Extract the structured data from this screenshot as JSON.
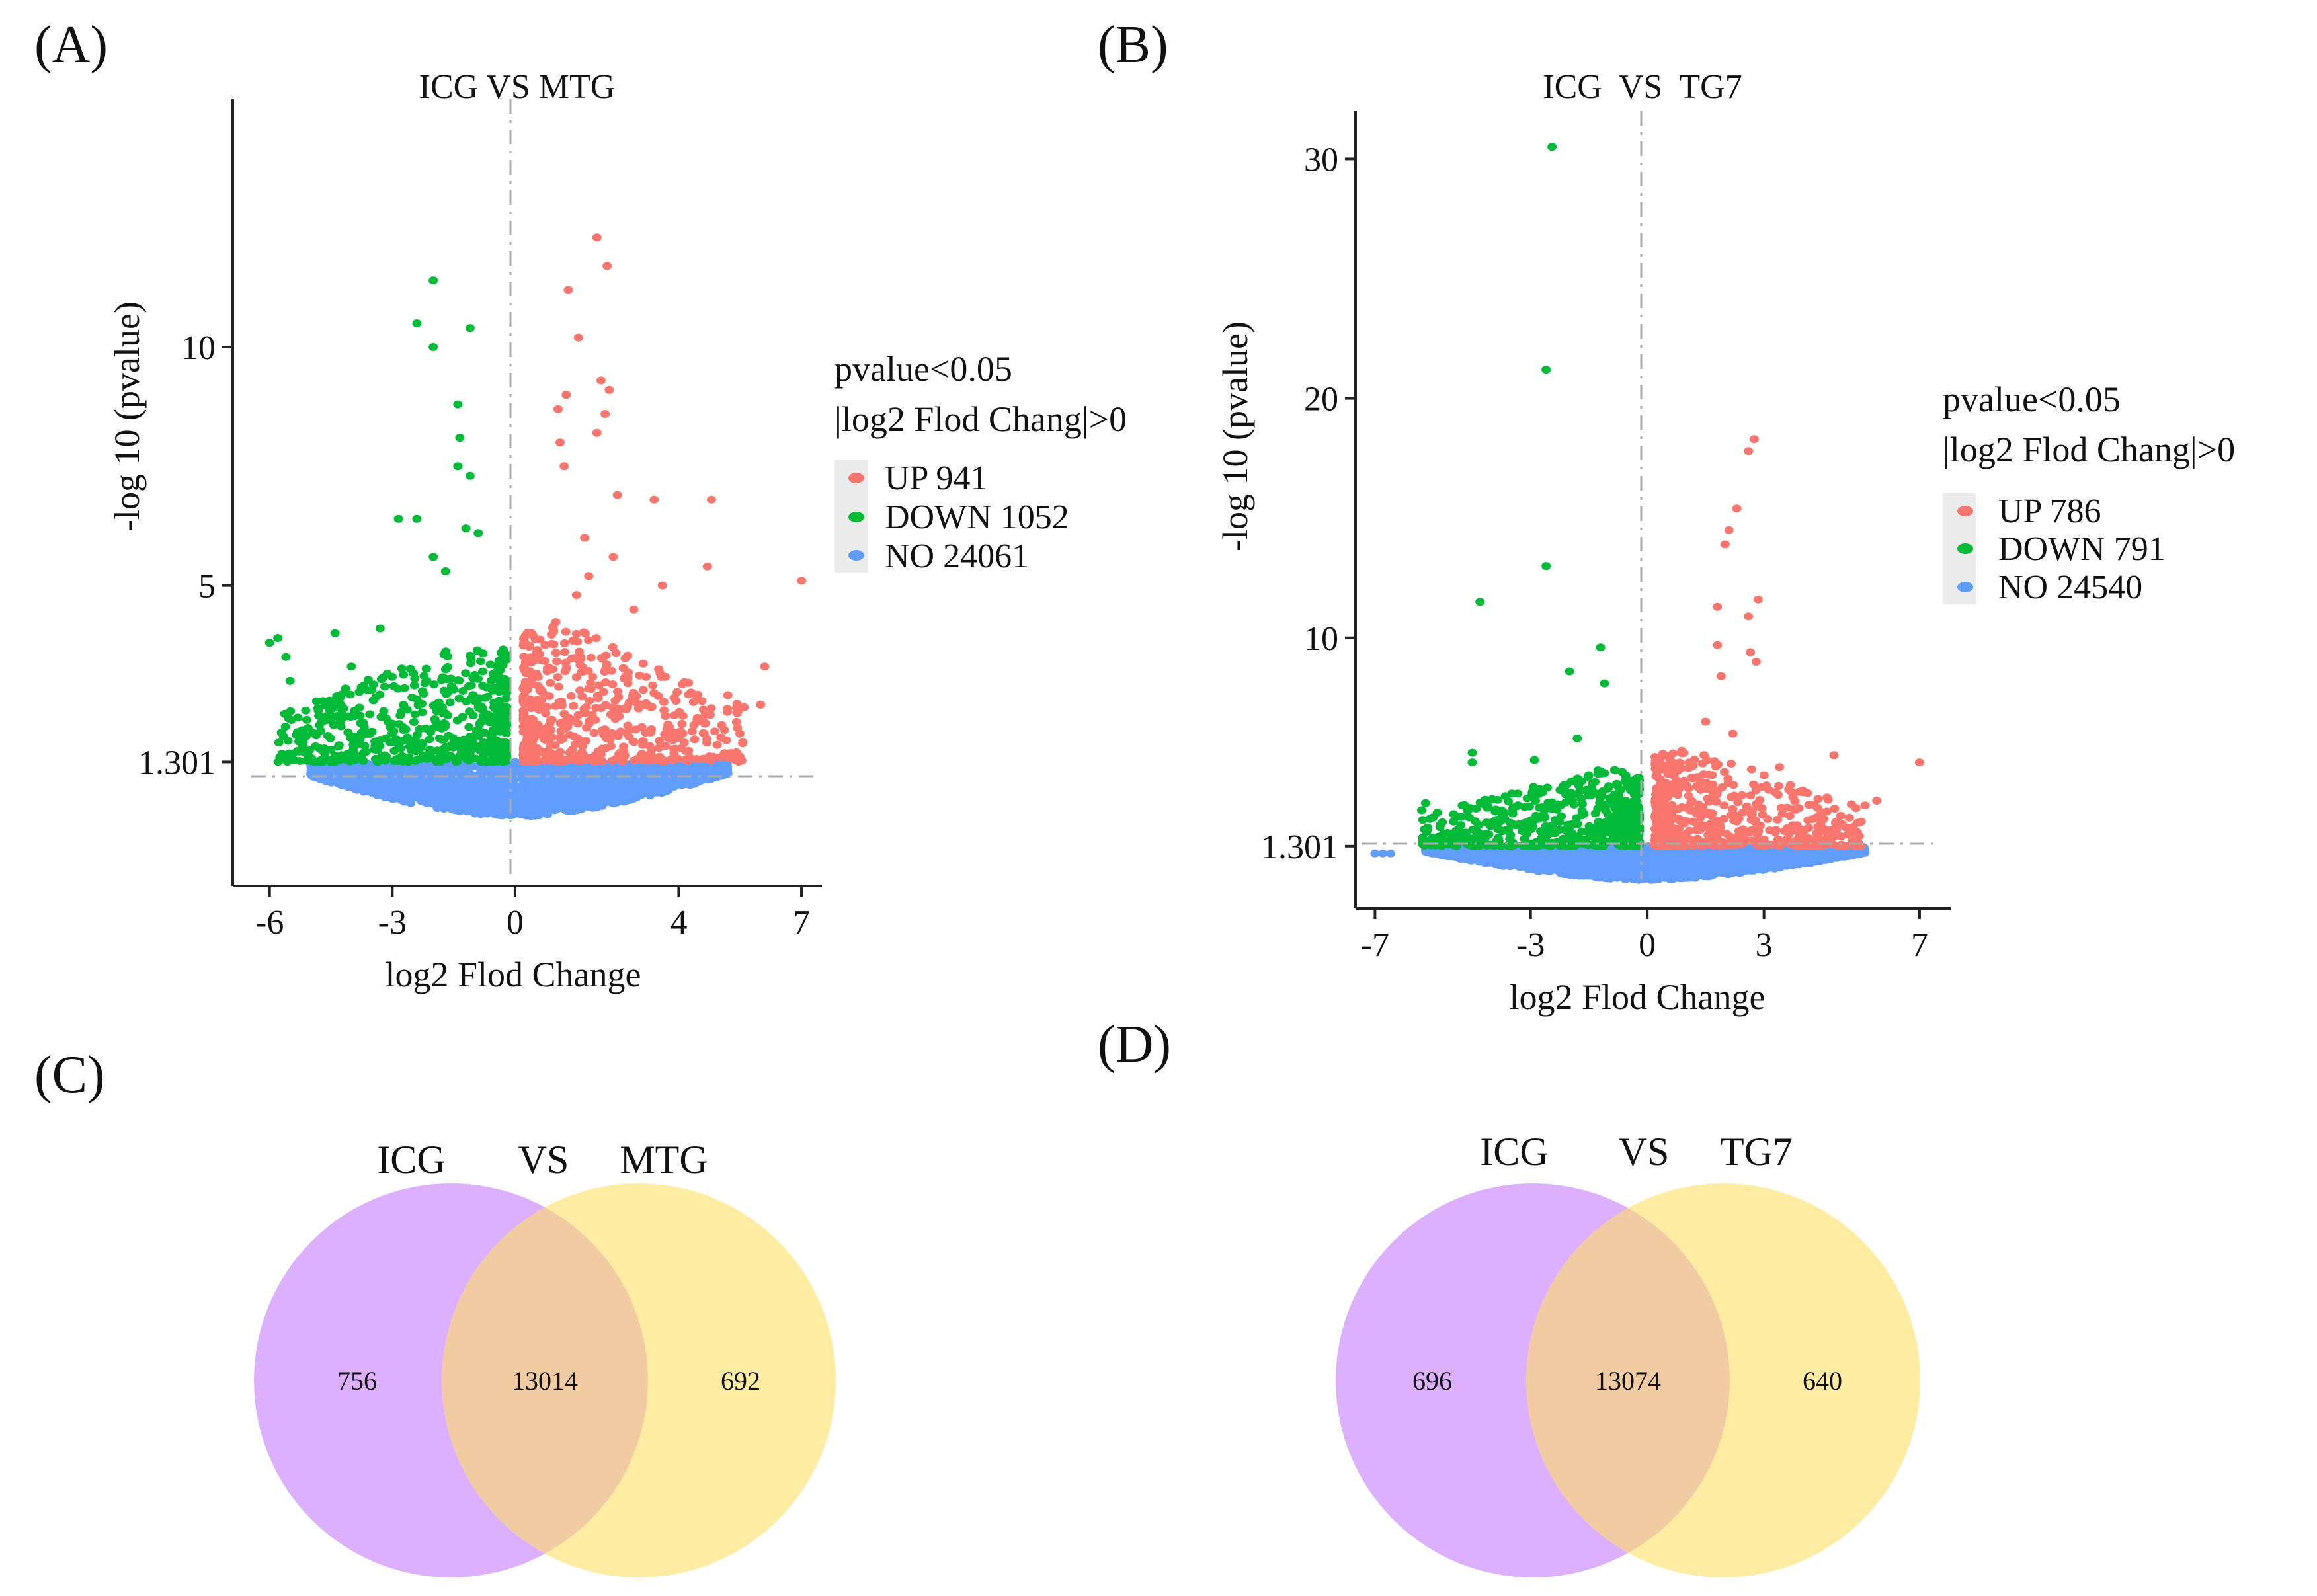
{
  "chart_data": [
    {
      "panel": "(A)",
      "type": "scatter",
      "title": "ICG VS MTG",
      "xlabel": "log2 Flod Change",
      "ylabel": "-log 10 (pvalue)",
      "xlim": [
        -6.9,
        7.5
      ],
      "ylim": [
        -1.3,
        15.2
      ],
      "xticks": [
        "-6",
        "-3",
        "0",
        "4",
        "7"
      ],
      "xtick_values": [
        -6,
        -3,
        0,
        4,
        7
      ],
      "yticks": [
        "1.301",
        "5",
        "10"
      ],
      "ytick_values": [
        1.301,
        5,
        10
      ],
      "threshold_y": 1.301,
      "threshold_x": 0,
      "legend": {
        "title_line1": "pvalue<0.05",
        "title_line2": "|log2 Flod Chang|>0",
        "position": "right"
      },
      "series": [
        {
          "name": "UP",
          "label": "UP 941",
          "count": 941,
          "color": "#f8766d",
          "points": [
            [
              2.0,
              12.3
            ],
            [
              2.25,
              11.7
            ],
            [
              1.3,
              11.2
            ],
            [
              1.55,
              10.2
            ],
            [
              2.1,
              9.3
            ],
            [
              2.3,
              9.1
            ],
            [
              1.25,
              9.0
            ],
            [
              2.2,
              8.6
            ],
            [
              1.05,
              8.7
            ],
            [
              2.0,
              8.2
            ],
            [
              1.1,
              8.0
            ],
            [
              1.2,
              7.5
            ],
            [
              2.5,
              6.9
            ],
            [
              3.4,
              6.8
            ],
            [
              4.8,
              6.8
            ],
            [
              4.7,
              5.4
            ],
            [
              3.6,
              5.0
            ],
            [
              2.9,
              4.5
            ],
            [
              7.0,
              5.1
            ],
            [
              6.1,
              3.3
            ],
            [
              5.2,
              2.7
            ],
            [
              6.0,
              2.5
            ],
            [
              1.5,
              4.8
            ],
            [
              1.8,
              5.2
            ],
            [
              1.7,
              6.0
            ],
            [
              2.4,
              5.6
            ]
          ],
          "cloud": {
            "x_min": 0.2,
            "x_max": 5.6,
            "y_max": 4.3
          }
        },
        {
          "name": "DOWN",
          "label": "DOWN 1052",
          "count": 1052,
          "color": "#00ba38",
          "points": [
            [
              -2.0,
              11.4
            ],
            [
              -2.4,
              10.5
            ],
            [
              -2.0,
              10.0
            ],
            [
              -1.1,
              10.4
            ],
            [
              -1.4,
              8.8
            ],
            [
              -1.35,
              8.1
            ],
            [
              -1.4,
              7.5
            ],
            [
              -1.1,
              7.3
            ],
            [
              -2.85,
              6.4
            ],
            [
              -2.4,
              6.4
            ],
            [
              -1.2,
              6.2
            ],
            [
              -0.9,
              6.1
            ],
            [
              -2.0,
              5.6
            ],
            [
              -1.7,
              5.3
            ],
            [
              -3.3,
              4.1
            ],
            [
              -4.0,
              3.3
            ],
            [
              -5.8,
              3.9
            ],
            [
              -5.6,
              3.5
            ],
            [
              -6.0,
              3.8
            ],
            [
              -5.5,
              3.0
            ],
            [
              -4.4,
              4.0
            ]
          ],
          "cloud": {
            "x_min": -5.8,
            "x_max": -0.2,
            "y_max": 3.9
          }
        },
        {
          "name": "NO",
          "label": "NO 24061",
          "count": 24061,
          "color": "#619cff",
          "cloud": {
            "x_min": -5.0,
            "x_max": 5.2,
            "y_max": 1.301
          }
        }
      ]
    },
    {
      "panel": "(B)",
      "type": "scatter",
      "title": "ICG  VS  TG7",
      "xlabel": "log2 Flod Change",
      "ylabel": "-log 10 (pvalue)",
      "xlim": [
        -7.5,
        7.8
      ],
      "ylim": [
        -1.3,
        32.0
      ],
      "xticks": [
        "-7",
        "-3",
        "0",
        "3",
        "7"
      ],
      "xtick_values": [
        -7,
        -3,
        0,
        3,
        7
      ],
      "yticks": [
        "1.301",
        "10",
        "20",
        "30"
      ],
      "ytick_values": [
        1.301,
        10,
        20,
        30
      ],
      "threshold_y": 1.301,
      "threshold_x": 0,
      "legend": {
        "title_line1": "pvalue<0.05",
        "title_line2": "|log2 Flod Chang|>0",
        "position": "right"
      },
      "series": [
        {
          "name": "UP",
          "label": "UP 786",
          "count": 786,
          "color": "#f8766d",
          "points": [
            [
              2.75,
              18.3
            ],
            [
              2.6,
              17.8
            ],
            [
              2.3,
              15.4
            ],
            [
              2.1,
              14.5
            ],
            [
              2.0,
              13.9
            ],
            [
              2.85,
              11.6
            ],
            [
              1.8,
              11.3
            ],
            [
              2.6,
              10.9
            ],
            [
              2.65,
              9.4
            ],
            [
              2.8,
              9.0
            ],
            [
              1.8,
              9.7
            ],
            [
              1.9,
              8.4
            ],
            [
              4.8,
              5.1
            ],
            [
              5.9,
              3.2
            ],
            [
              5.6,
              3.0
            ],
            [
              7.0,
              4.8
            ],
            [
              1.5,
              6.5
            ],
            [
              2.2,
              6.0
            ],
            [
              3.4,
              4.6
            ]
          ],
          "cloud": {
            "x_min": 0.2,
            "x_max": 5.5,
            "y_max": 5.5
          }
        },
        {
          "name": "DOWN",
          "label": "DOWN 791",
          "count": 791,
          "color": "#00ba38",
          "points": [
            [
              -2.45,
              30.5
            ],
            [
              -2.6,
              21.2
            ],
            [
              -2.6,
              13.0
            ],
            [
              -4.3,
              11.5
            ],
            [
              -1.2,
              9.6
            ],
            [
              -2.0,
              8.6
            ],
            [
              -1.1,
              8.1
            ],
            [
              -4.5,
              5.2
            ],
            [
              -4.5,
              4.8
            ],
            [
              -5.7,
              3.1
            ],
            [
              -5.8,
              2.8
            ],
            [
              -2.9,
              4.9
            ],
            [
              -1.8,
              5.8
            ]
          ],
          "cloud": {
            "x_min": -5.8,
            "x_max": -0.2,
            "y_max": 4.6
          }
        },
        {
          "name": "NO",
          "label": "NO 24540",
          "count": 24540,
          "color": "#619cff",
          "points": [
            [
              -7.0,
              1.0
            ],
            [
              -6.8,
              1.0
            ],
            [
              -6.6,
              1.0
            ]
          ],
          "cloud": {
            "x_min": -5.7,
            "x_max": 5.6,
            "y_max": 1.301
          }
        }
      ]
    },
    {
      "panel": "(C)",
      "type": "venn",
      "title_left": "ICG",
      "title_mid": "VS",
      "title_right": "MTG",
      "sets": [
        {
          "name": "ICG",
          "only": "756",
          "color": "#c77cff"
        },
        {
          "name": "MTG",
          "only": "692",
          "color": "#ffe066"
        }
      ],
      "intersection": "13014"
    },
    {
      "panel": "(D)",
      "type": "venn",
      "title_left": "ICG",
      "title_mid": "VS",
      "title_right": "TG7",
      "sets": [
        {
          "name": "ICG",
          "only": "696",
          "color": "#c77cff"
        },
        {
          "name": "TG7",
          "only": "640",
          "color": "#ffe066"
        }
      ],
      "intersection": "13074"
    }
  ]
}
